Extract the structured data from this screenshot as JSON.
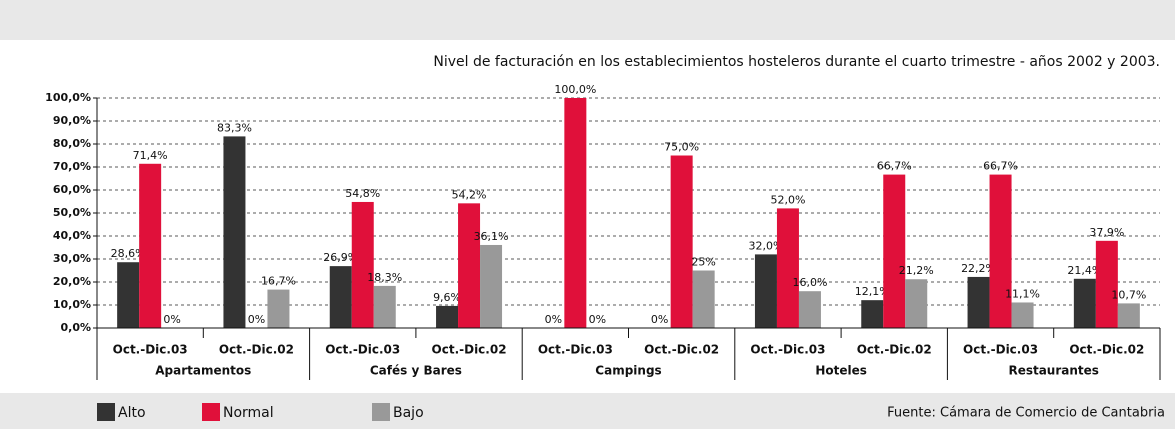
{
  "chart_data": {
    "type": "bar",
    "title": "Nivel de facturación en los establecimientos hosteleros durante el cuarto trimestre - años 2002 y 2003.",
    "categories": [
      "Oct.-Dic.03",
      "Oct.-Dic.02",
      "Oct.-Dic.03",
      "Oct.-Dic.02",
      "Oct.-Dic.03",
      "Oct.-Dic.02",
      "Oct.-Dic.03",
      "Oct.-Dic.02",
      "Oct.-Dic.03",
      "Oct.-Dic.02"
    ],
    "category_groups": [
      "Apartamentos",
      "Cafés y Bares",
      "Campings",
      "Hoteles",
      "Restaurantes"
    ],
    "series": [
      {
        "name": "Alto",
        "color": "#333333",
        "values": [
          28.6,
          83.3,
          26.9,
          9.6,
          0,
          0,
          32.0,
          12.1,
          22.2,
          21.4
        ],
        "value_labels": [
          "28,6%",
          "83,3%",
          "26,9%",
          "9,6%",
          "0%",
          "0%",
          "32,0%",
          "12,1%",
          "22,2%",
          "21,4%"
        ]
      },
      {
        "name": "Normal",
        "color": "#e0103a",
        "values": [
          71.4,
          0,
          54.8,
          54.2,
          100.0,
          75.0,
          52.0,
          66.7,
          66.7,
          37.9
        ],
        "value_labels": [
          "71,4%",
          "0%",
          "54,8%",
          "54,2%",
          "100,0%",
          "75,0%",
          "52,0%",
          "66,7%",
          "66,7%",
          "37,9%"
        ]
      },
      {
        "name": "Bajo",
        "color": "#999999",
        "values": [
          0,
          16.7,
          18.3,
          36.1,
          0,
          25,
          16.0,
          21.2,
          11.1,
          10.7
        ],
        "value_labels": [
          "0%",
          "16,7%",
          "18,3%",
          "36,1%",
          "0%",
          "25%",
          "16,0%",
          "21,2%",
          "11,1%",
          "10,7%"
        ]
      }
    ],
    "ylim": [
      0,
      100
    ],
    "yticks": [
      {
        "value": 0,
        "label": "0,0%"
      },
      {
        "value": 10,
        "label": "10,0%"
      },
      {
        "value": 20,
        "label": "20,0%"
      },
      {
        "value": 30,
        "label": "30,0%"
      },
      {
        "value": 40,
        "label": "40,0%"
      },
      {
        "value": 50,
        "label": "50,0%"
      },
      {
        "value": 60,
        "label": "60,0%"
      },
      {
        "value": 70,
        "label": "70,0%"
      },
      {
        "value": 80,
        "label": "80,0%"
      },
      {
        "value": 90,
        "label": "90,0%"
      },
      {
        "value": 100,
        "label": "100,0%"
      }
    ],
    "grid": true,
    "source": "Fuente: Cámara de Comercio de Cantabria"
  }
}
